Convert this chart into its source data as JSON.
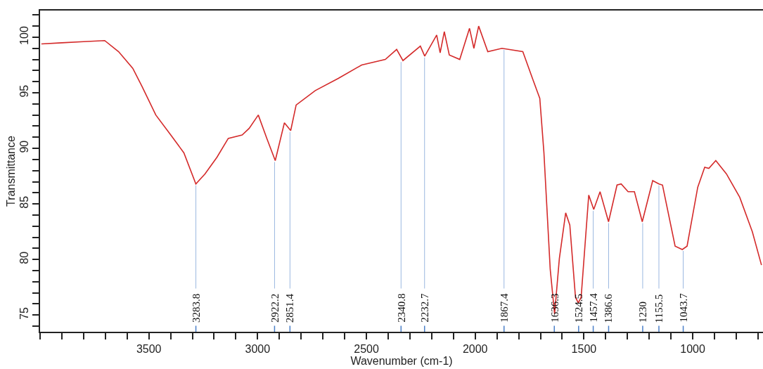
{
  "chart_data": {
    "type": "line",
    "xlabel": "Wavenumber (cm-1)",
    "ylabel": "Transmittance",
    "x": [
      3994,
      3900,
      3800,
      3703,
      3639,
      3574,
      3532,
      3468,
      3403,
      3339,
      3284,
      3242,
      3187,
      3135,
      3071,
      3039,
      2997,
      2958,
      2919,
      2877,
      2848,
      2823,
      2735,
      2629,
      2522,
      2413,
      2361,
      2332,
      2252,
      2232,
      2177,
      2161,
      2142,
      2119,
      2071,
      2026,
      2006,
      1984,
      1942,
      1877,
      1781,
      1735,
      1703,
      1684,
      1655,
      1635,
      1613,
      1584,
      1565,
      1539,
      1526,
      1513,
      1478,
      1455,
      1426,
      1387,
      1348,
      1329,
      1297,
      1268,
      1232,
      1184,
      1155,
      1139,
      1081,
      1048,
      1026,
      977,
      945,
      926,
      894,
      845,
      784,
      726,
      684
    ],
    "series": [
      {
        "color": "#d42a2a",
        "values": [
          99.4,
          99.5,
          99.6,
          99.7,
          98.7,
          97.2,
          95.6,
          93.0,
          91.3,
          89.6,
          86.8,
          87.7,
          89.2,
          90.9,
          91.2,
          91.8,
          93.0,
          90.9,
          88.9,
          92.3,
          91.6,
          93.9,
          95.2,
          96.3,
          97.5,
          98.0,
          98.9,
          97.9,
          99.2,
          98.3,
          100.2,
          98.6,
          100.5,
          98.4,
          98.0,
          100.8,
          99.0,
          101.0,
          98.7,
          99.0,
          98.7,
          96.2,
          94.5,
          89.6,
          79.1,
          75.1,
          80.1,
          84.2,
          83.1,
          76.6,
          76.1,
          76.6,
          85.8,
          84.5,
          86.1,
          83.4,
          86.7,
          86.8,
          86.1,
          86.1,
          83.4,
          87.1,
          86.8,
          86.7,
          81.2,
          80.9,
          81.2,
          86.5,
          88.3,
          88.2,
          88.9,
          87.7,
          85.6,
          82.5,
          79.5
        ]
      }
    ],
    "xlim": [
      4000,
      677
    ],
    "ylim": [
      73.5,
      102.4
    ],
    "xticks": [
      3500,
      3000,
      2500,
      2000,
      1500,
      1000
    ],
    "yticks": [
      75,
      80,
      85,
      90,
      95,
      100
    ],
    "annotations": [
      {
        "text": "3283.8",
        "x": 3283.8,
        "y": 86.8
      },
      {
        "text": "2922.2",
        "x": 2922.2,
        "y": 88.9
      },
      {
        "text": "2851.4",
        "x": 2851.4,
        "y": 91.6
      },
      {
        "text": "2340.8",
        "x": 2340.8,
        "y": 97.9
      },
      {
        "text": "2232.7",
        "x": 2232.7,
        "y": 98.3
      },
      {
        "text": "1867.4",
        "x": 1867.4,
        "y": 99.0
      },
      {
        "text": "1636.3",
        "x": 1636.3,
        "y": 75.1
      },
      {
        "text": "1524.5",
        "x": 1524.5,
        "y": 76.1
      },
      {
        "text": "1457.4",
        "x": 1457.4,
        "y": 84.5
      },
      {
        "text": "1386.6",
        "x": 1386.6,
        "y": 83.4
      },
      {
        "text": "1230",
        "x": 1230,
        "y": 83.4
      },
      {
        "text": "1155.5",
        "x": 1155.5,
        "y": 86.8
      },
      {
        "text": "1043.7",
        "x": 1043.7,
        "y": 80.9
      }
    ]
  }
}
